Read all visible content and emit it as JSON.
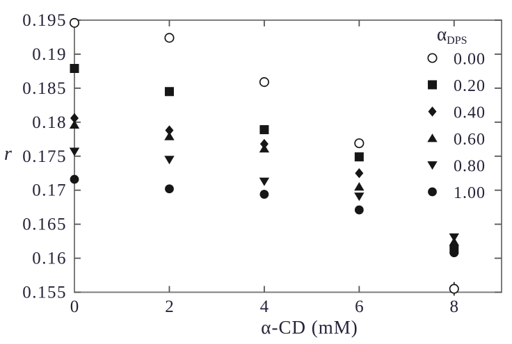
{
  "chart_data": {
    "type": "scatter",
    "title": "",
    "xlabel": "α-CD (mM)",
    "ylabel": "r",
    "xlim": [
      0,
      9
    ],
    "ylim": [
      0.155,
      0.195
    ],
    "grid": false,
    "frame_box": true,
    "xticks": [
      0,
      2,
      4,
      6,
      8
    ],
    "xtick_labels": [
      "0",
      "2",
      "4",
      "6",
      "8"
    ],
    "yticks": [
      0.155,
      0.16,
      0.165,
      0.17,
      0.175,
      0.18,
      0.185,
      0.19,
      0.195
    ],
    "ytick_labels": [
      "0.155",
      "0.16",
      "0.165",
      "0.17",
      "0.175",
      "0.18",
      "0.185",
      "0.19",
      "0.195"
    ],
    "legend": {
      "title_main": "α",
      "title_sub": "DPS",
      "position": "top-right"
    },
    "x": [
      0,
      2,
      4,
      6,
      8
    ],
    "series": [
      {
        "name": "0.00",
        "marker": "circle-open",
        "values": [
          0.1946,
          0.1924,
          0.1859,
          0.1769,
          0.1555
        ],
        "yerr": [
          null,
          null,
          null,
          null,
          0.001
        ]
      },
      {
        "name": "0.20",
        "marker": "square",
        "values": [
          0.1879,
          0.1845,
          0.1789,
          0.1749,
          0.1613
        ],
        "yerr": null
      },
      {
        "name": "0.40",
        "marker": "diamond",
        "values": [
          0.1806,
          0.1788,
          0.1768,
          0.1725,
          0.1618
        ],
        "yerr": null
      },
      {
        "name": "0.60",
        "marker": "triangle-up",
        "values": [
          0.1796,
          0.1779,
          0.1761,
          0.1705,
          0.1624
        ],
        "yerr": null
      },
      {
        "name": "0.80",
        "marker": "triangle-down",
        "values": [
          0.1757,
          0.1745,
          0.1713,
          0.1691,
          0.1631
        ],
        "yerr": null
      },
      {
        "name": "1.00",
        "marker": "circle",
        "values": [
          0.1716,
          0.1702,
          0.1694,
          0.1671,
          0.1608
        ],
        "yerr": null
      }
    ],
    "colors": {
      "marker": "#161616",
      "frame": "#7c7c7c",
      "tick": "#555555",
      "text": "#23233a",
      "background": "#ffffff"
    }
  }
}
